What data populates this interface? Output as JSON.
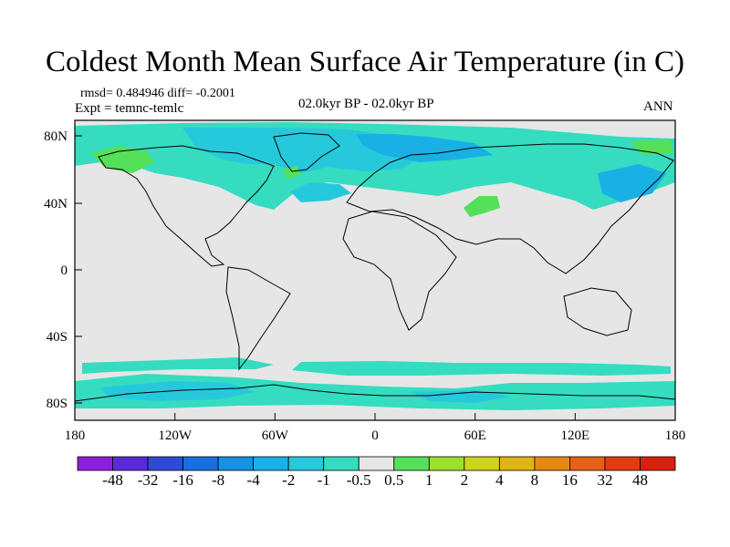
{
  "title": "Coldest Month Mean Surface Air Temperature (in C)",
  "stats": "rmsd= 0.484946 diff= -0.2001",
  "experiment": "Expt = temnc-temlc",
  "period": "02.0kyr BP - 02.0kyr BP",
  "season": "ANN",
  "lat_ticks": [
    "80N",
    "40N",
    "0",
    "40S",
    "80S"
  ],
  "lon_ticks": [
    "180",
    "120W",
    "60W",
    "0",
    "60E",
    "120E",
    "180"
  ],
  "colorbar": {
    "labels": [
      "-48",
      "-32",
      "-16",
      "-8",
      "-4",
      "-2",
      "-1",
      "-0.5",
      "0.5",
      "1",
      "2",
      "4",
      "8",
      "16",
      "32",
      "48"
    ],
    "colors": [
      "#8b1fe0",
      "#5a2ad8",
      "#2f4bd6",
      "#1a6fe0",
      "#1691e3",
      "#19b0e6",
      "#26c9dc",
      "#35dcc0",
      "#e6e6e6",
      "#55e05a",
      "#9ee02c",
      "#cfd31a",
      "#e0b414",
      "#e48a12",
      "#e6601a",
      "#e33a14",
      "#d8200e"
    ]
  },
  "legend_colors": {
    "neutral": "#e6e6e6",
    "slight_cool": "#35dcc0",
    "cool": "#26c9dc",
    "cooler": "#19b0e6",
    "slight_warm": "#55e05a",
    "warm": "#9ee02c"
  }
}
